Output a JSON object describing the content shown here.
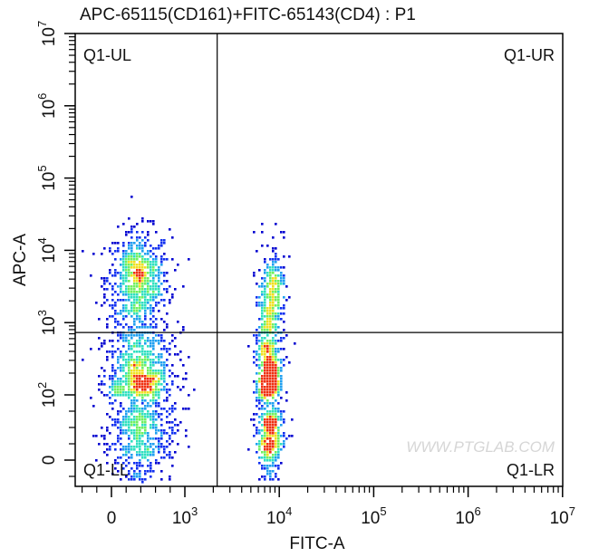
{
  "chart_data": {
    "type": "scatter",
    "subtype": "flow-cytometry-density-dot-plot",
    "title": "APC-65115(CD161)+FITC-65143(CD4) : P1",
    "xlabel": "FITC-A",
    "ylabel": "APC-A",
    "x_scale": "biexponential",
    "y_scale": "biexponential",
    "x_ticks": [
      {
        "value": 0,
        "label": "0"
      },
      {
        "value": 1000,
        "label": "10",
        "exp": "3"
      },
      {
        "value": 10000,
        "label": "10",
        "exp": "4"
      },
      {
        "value": 100000,
        "label": "10",
        "exp": "5"
      },
      {
        "value": 1000000,
        "label": "10",
        "exp": "6"
      },
      {
        "value": 10000000,
        "label": "10",
        "exp": "7"
      }
    ],
    "y_ticks": [
      {
        "value": 0,
        "label": "0"
      },
      {
        "value": 100,
        "label": "10",
        "exp": "2"
      },
      {
        "value": 1000,
        "label": "10",
        "exp": "3"
      },
      {
        "value": 10000,
        "label": "10",
        "exp": "4"
      },
      {
        "value": 100000,
        "label": "10",
        "exp": "5"
      },
      {
        "value": 1000000,
        "label": "10",
        "exp": "6"
      },
      {
        "value": 10000000,
        "label": "10",
        "exp": "7"
      }
    ],
    "xlim": [
      -490,
      10000000
    ],
    "ylim": [
      -40,
      10000000
    ],
    "quadrant_gate": {
      "x": 2200,
      "y": 730
    },
    "quadrants": [
      {
        "name": "Q1-UL",
        "position": "top-left"
      },
      {
        "name": "Q1-UR",
        "position": "top-right"
      },
      {
        "name": "Q1-LL",
        "position": "bottom-left"
      },
      {
        "name": "Q1-LR",
        "position": "bottom-right"
      }
    ],
    "populations": [
      {
        "quadrant": "Q1-UL",
        "fitc_center": 350,
        "fitc_spread": 220,
        "apc_center_log10": 3.6,
        "apc_spread_log10": 0.35,
        "events": 700
      },
      {
        "quadrant": "Q1-LL",
        "fitc_center": 380,
        "fitc_spread": 240,
        "apc_center_log10": 2.1,
        "apc_spread_log10": 0.45,
        "events": 1300
      },
      {
        "quadrant": "Q1-LR",
        "fitc_center_log10": 3.88,
        "fitc_spread_log10": 0.07,
        "apc_center_log10": 2.1,
        "apc_spread_log10": 0.5,
        "events": 900
      },
      {
        "quadrant": "Q1-UR",
        "fitc_center_log10": 3.9,
        "fitc_spread_log10": 0.07,
        "apc_center_log10": 3.4,
        "apc_spread_log10": 0.35,
        "events": 320
      }
    ],
    "density_colors": [
      "#0000d0",
      "#1030f0",
      "#20a0f0",
      "#30e0c0",
      "#70f060",
      "#f0e020",
      "#f03010"
    ],
    "grid": false
  },
  "watermark": "WWW.PTGLAB.COM"
}
